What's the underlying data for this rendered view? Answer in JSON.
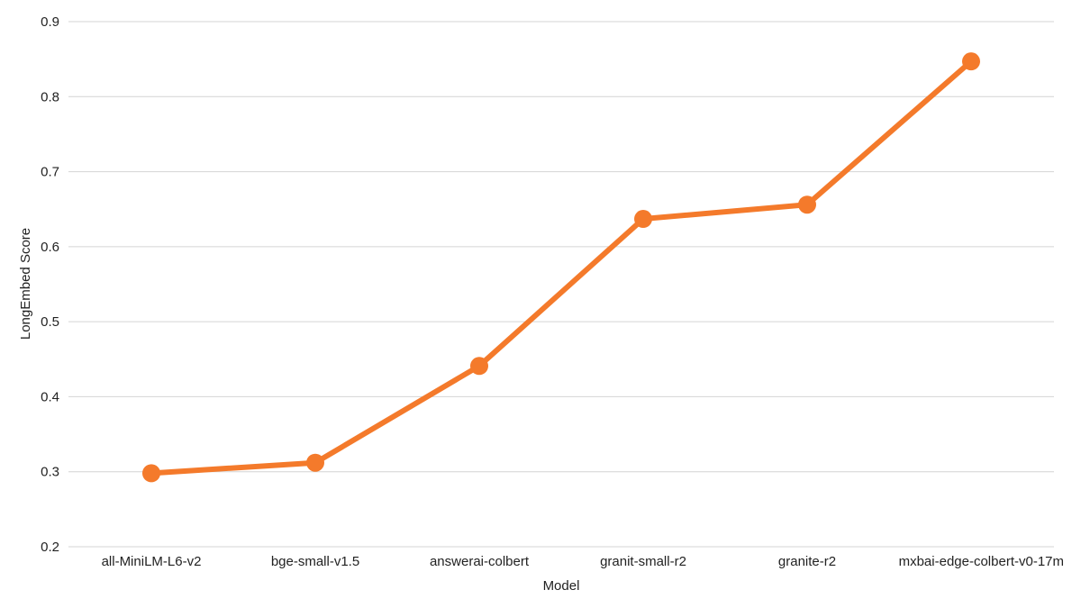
{
  "chart_data": {
    "type": "line",
    "title": "",
    "xlabel": "Model",
    "ylabel": "LongEmbed Score",
    "categories": [
      "all-MiniLM-L6-v2",
      "bge-small-v1.5",
      "answerai-colbert",
      "granit-small-r2",
      "granite-r2",
      "mxbai-edge-colbert-v0-17m"
    ],
    "series": [
      {
        "values": [
          0.298,
          0.312,
          0.441,
          0.637,
          0.656,
          0.847
        ],
        "color": "#f47a2b"
      }
    ],
    "ylim": [
      0.2,
      0.9
    ],
    "yticks": [
      "0.2",
      "0.3",
      "0.4",
      "0.5",
      "0.6",
      "0.7",
      "0.8",
      "0.9"
    ],
    "grid": true,
    "legend": "none"
  }
}
